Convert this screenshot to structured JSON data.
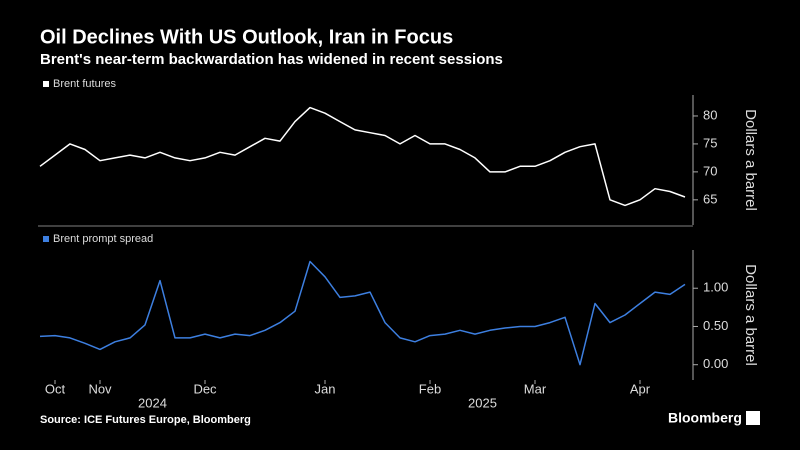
{
  "title": "Oil Declines With US Outlook, Iran in Focus",
  "subtitle": "Brent's near-term backwardation has widened in recent sessions",
  "source": "Source: ICE Futures Europe, Bloomberg",
  "brand": "Bloomberg",
  "chart_data": [
    {
      "type": "line",
      "y_label": "Dollars a barrel",
      "series": [
        {
          "name": "Brent futures",
          "color": "#ffffff",
          "values": [
            71,
            73,
            75,
            74,
            72,
            72.5,
            73,
            72.5,
            73.5,
            72.5,
            72,
            72.5,
            73.5,
            73,
            74.5,
            76,
            75.5,
            79,
            81.5,
            80.5,
            79,
            77.5,
            77,
            76.5,
            75,
            76.5,
            75,
            75,
            74,
            72.5,
            70,
            70,
            71,
            71,
            72,
            73.5,
            74.5,
            75,
            65,
            64,
            65,
            67,
            66.5,
            65.5
          ]
        }
      ],
      "ylim": [
        60.5,
        83.75
      ],
      "yticks": [
        65,
        70,
        75,
        80
      ]
    },
    {
      "type": "line",
      "y_label": "Dollars a barrel",
      "categories": [
        null,
        "Oct",
        null,
        null,
        "Nov",
        null,
        null,
        null,
        null,
        null,
        null,
        "Dec",
        null,
        null,
        null,
        null,
        null,
        null,
        null,
        "Jan",
        null,
        null,
        null,
        null,
        null,
        null,
        "Feb",
        null,
        null,
        null,
        null,
        null,
        null,
        "Mar",
        null,
        null,
        null,
        null,
        null,
        null,
        "Apr",
        null,
        null,
        null
      ],
      "years": [
        "2024",
        "2025"
      ],
      "series": [
        {
          "name": "Brent prompt spread",
          "color": "#3d7fe0",
          "values": [
            0.37,
            0.38,
            0.35,
            0.28,
            0.2,
            0.3,
            0.35,
            0.52,
            1.1,
            0.35,
            0.35,
            0.4,
            0.35,
            0.4,
            0.38,
            0.45,
            0.55,
            0.7,
            1.35,
            1.15,
            0.88,
            0.9,
            0.95,
            0.55,
            0.35,
            0.3,
            0.38,
            0.4,
            0.45,
            0.4,
            0.45,
            0.48,
            0.5,
            0.5,
            0.55,
            0.62,
            0.0,
            0.8,
            0.55,
            0.65,
            0.8,
            0.95,
            0.92,
            1.05
          ]
        }
      ],
      "ylim": [
        -0.2,
        1.5
      ],
      "yticks": [
        {
          "value": 0,
          "label": "0.00"
        },
        {
          "value": 0.5,
          "label": "0.50"
        },
        {
          "value": 1,
          "label": "1.00"
        }
      ]
    }
  ]
}
